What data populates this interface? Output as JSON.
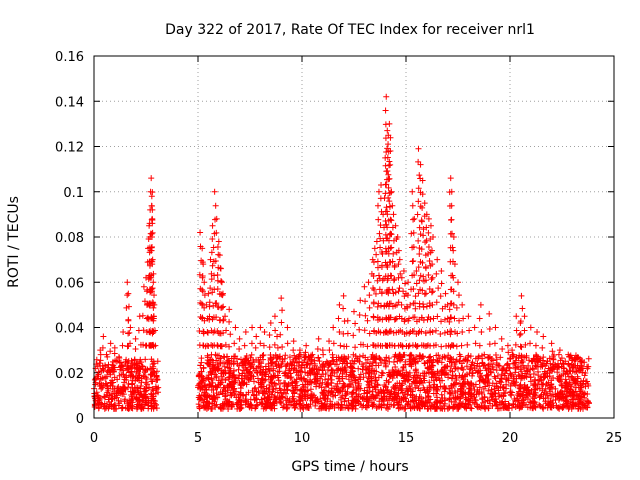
{
  "chart_data": {
    "type": "scatter",
    "title": "Day 322 of 2017, Rate Of TEC Index for receiver nrl1",
    "xlabel": "GPS time / hours",
    "ylabel": "ROTI / TECUs",
    "xlim": [
      0,
      25
    ],
    "ylim": [
      0,
      0.16
    ],
    "xticks": [
      0,
      5,
      10,
      15,
      20,
      25
    ],
    "xtick_labels": [
      "0",
      "5",
      "10",
      "15",
      "20",
      "25"
    ],
    "yticks": [
      0,
      0.02,
      0.04,
      0.06,
      0.08,
      0.1,
      0.12,
      0.14,
      0.16
    ],
    "ytick_labels": [
      "0",
      "0.02",
      "0.04",
      "0.06",
      "0.08",
      "0.1",
      "0.12",
      "0.14",
      "0.16"
    ],
    "grid": true,
    "marker": "+",
    "marker_color": "#ff0000",
    "baseline_segments": [
      {
        "x": [
          0.0,
          3.1
        ],
        "y_min": 0.004,
        "y_max": 0.026
      },
      {
        "x": [
          5.0,
          23.8
        ],
        "y_min": 0.004,
        "y_max": 0.028
      }
    ],
    "series": [
      {
        "x": [
          0.3,
          0.45,
          0.6,
          0.8,
          1.0,
          1.2,
          1.4,
          1.6,
          1.65,
          1.75,
          2.0,
          2.2,
          2.4,
          2.5,
          2.55,
          2.6,
          2.65,
          2.7,
          2.72,
          2.75,
          2.78,
          2.8,
          2.82,
          2.85,
          2.88,
          2.9,
          5.1,
          5.2,
          5.25,
          5.3,
          5.4,
          5.5,
          5.6,
          5.7,
          5.8,
          5.9,
          6.0,
          6.05,
          6.1,
          6.15,
          6.2,
          6.3,
          6.5,
          6.8,
          7.0,
          7.3,
          7.6,
          7.8,
          8.0,
          8.2,
          8.5,
          8.7,
          8.8,
          9.0,
          9.3,
          9.6,
          9.9,
          10.2,
          10.5,
          10.8,
          11.0,
          11.3,
          11.5,
          11.8,
          12.0,
          12.2,
          12.5,
          12.8,
          13.0,
          13.2,
          13.4,
          13.5,
          13.6,
          13.7,
          13.8,
          13.9,
          14.0,
          14.05,
          14.1,
          14.15,
          14.2,
          14.25,
          14.3,
          14.4,
          14.5,
          14.6,
          14.7,
          14.8,
          14.9,
          15.0,
          15.1,
          15.2,
          15.3,
          15.4,
          15.5,
          15.6,
          15.7,
          15.8,
          15.9,
          16.0,
          16.1,
          16.2,
          16.3,
          16.5,
          16.7,
          16.9,
          17.0,
          17.1,
          17.15,
          17.2,
          17.3,
          17.5,
          17.7,
          18.0,
          18.3,
          18.6,
          19.0,
          19.3,
          19.6,
          19.9,
          20.1,
          20.3,
          20.5,
          20.55,
          20.7,
          21.0,
          21.3,
          21.6,
          22.0,
          22.4,
          22.8,
          23.1,
          23.4
        ],
        "y": [
          0.03,
          0.036,
          0.028,
          0.033,
          0.031,
          0.027,
          0.038,
          0.06,
          0.055,
          0.04,
          0.035,
          0.045,
          0.058,
          0.062,
          0.05,
          0.075,
          0.085,
          0.092,
          0.1,
          0.106,
          0.098,
          0.088,
          0.07,
          0.06,
          0.045,
          0.05,
          0.082,
          0.075,
          0.068,
          0.06,
          0.05,
          0.055,
          0.07,
          0.085,
          0.1,
          0.088,
          0.078,
          0.072,
          0.066,
          0.06,
          0.055,
          0.045,
          0.048,
          0.04,
          0.035,
          0.038,
          0.04,
          0.036,
          0.04,
          0.038,
          0.042,
          0.045,
          0.036,
          0.053,
          0.04,
          0.034,
          0.03,
          0.032,
          0.028,
          0.035,
          0.03,
          0.034,
          0.04,
          0.05,
          0.054,
          0.043,
          0.047,
          0.052,
          0.058,
          0.06,
          0.07,
          0.075,
          0.078,
          0.1,
          0.103,
          0.09,
          0.115,
          0.142,
          0.127,
          0.125,
          0.13,
          0.118,
          0.1,
          0.09,
          0.085,
          0.08,
          0.07,
          0.062,
          0.065,
          0.055,
          0.06,
          0.05,
          0.1,
          0.088,
          0.065,
          0.119,
          0.112,
          0.105,
          0.095,
          0.09,
          0.088,
          0.085,
          0.08,
          0.07,
          0.065,
          0.055,
          0.05,
          0.048,
          0.106,
          0.1,
          0.08,
          0.06,
          0.05,
          0.045,
          0.04,
          0.05,
          0.046,
          0.04,
          0.035,
          0.032,
          0.03,
          0.045,
          0.042,
          0.054,
          0.045,
          0.04,
          0.038,
          0.036,
          0.033,
          0.03,
          0.028,
          0.026,
          0.025
        ]
      }
    ]
  }
}
